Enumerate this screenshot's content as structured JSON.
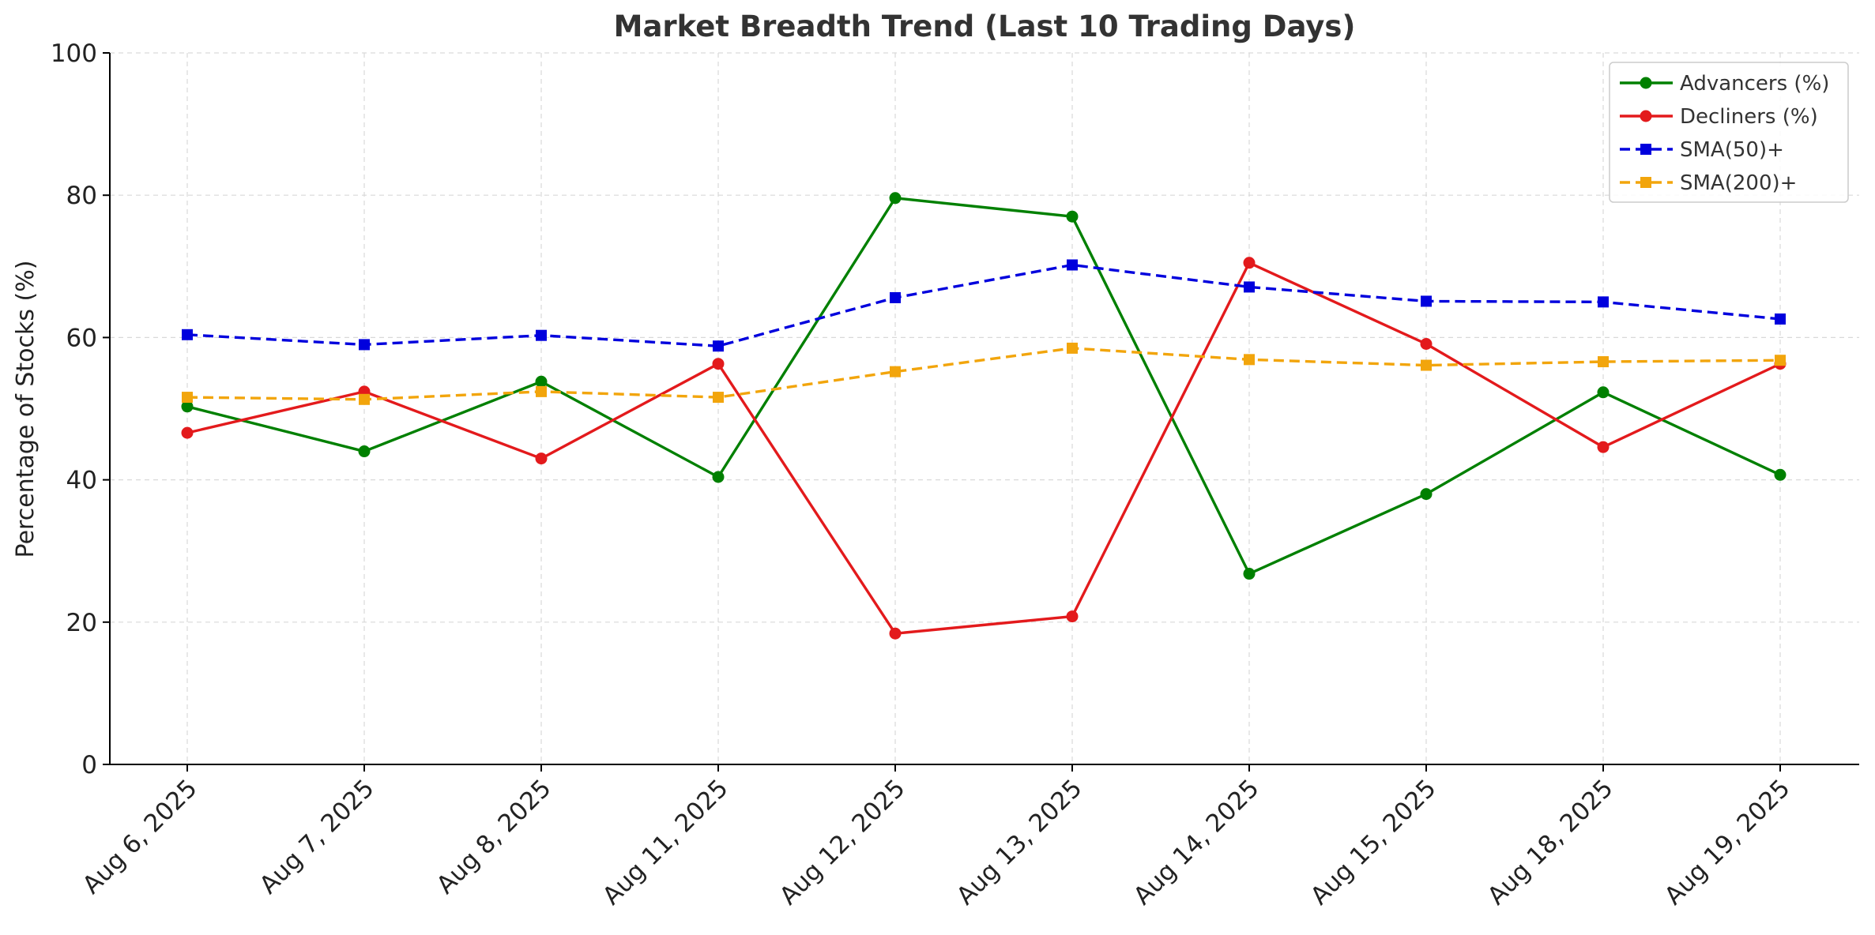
{
  "chart_data": {
    "type": "line",
    "title": "Market Breadth Trend (Last 10 Trading Days)",
    "xlabel": "",
    "ylabel": "Percentage of Stocks (%)",
    "ylim": [
      0,
      100
    ],
    "yticks": [
      0,
      20,
      40,
      60,
      80,
      100
    ],
    "grid": true,
    "legend_position": "top-right",
    "categories": [
      "Aug 6, 2025",
      "Aug 7, 2025",
      "Aug 8, 2025",
      "Aug 11, 2025",
      "Aug 12, 2025",
      "Aug 13, 2025",
      "Aug 14, 2025",
      "Aug 15, 2025",
      "Aug 18, 2025",
      "Aug 19, 2025"
    ],
    "series": [
      {
        "name": "Advancers (%)",
        "color": "#008000",
        "line_style": "solid",
        "marker": "circle",
        "values": [
          50.3,
          44.0,
          53.8,
          40.4,
          79.6,
          77.0,
          26.8,
          38.0,
          52.3,
          40.7
        ]
      },
      {
        "name": "Decliners (%)",
        "color": "#e31a1c",
        "line_style": "solid",
        "marker": "circle",
        "values": [
          46.6,
          52.4,
          43.0,
          56.3,
          18.4,
          20.8,
          70.5,
          59.1,
          44.6,
          56.3
        ]
      },
      {
        "name": "SMA(50)+",
        "color": "#0000dd",
        "line_style": "dashed",
        "marker": "square",
        "values": [
          60.4,
          59.0,
          60.3,
          58.8,
          65.6,
          70.2,
          67.1,
          65.1,
          65.0,
          62.6
        ]
      },
      {
        "name": "SMA(200)+",
        "color": "#f2a50c",
        "line_style": "dashed",
        "marker": "square",
        "values": [
          51.6,
          51.3,
          52.4,
          51.6,
          55.2,
          58.5,
          56.9,
          56.1,
          56.6,
          56.8
        ]
      }
    ]
  }
}
